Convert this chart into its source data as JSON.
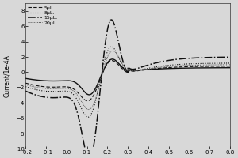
{
  "title": "",
  "xlabel": "",
  "ylabel": "Current/1e-4A",
  "xlim": [
    -0.2,
    0.8
  ],
  "ylim": [
    -10.0,
    9.0
  ],
  "xticks": [
    -0.2,
    -0.1,
    0.0,
    0.1,
    0.2,
    0.3,
    0.4,
    0.5,
    0.6,
    0.7,
    0.8
  ],
  "yticks": [
    -10.0,
    -8.0,
    -6.0,
    -4.0,
    -2.0,
    0.0,
    2.0,
    4.0,
    6.0,
    8.0
  ],
  "legend_labels": [
    "5μL.",
    "8μL.",
    "15μL.",
    "20μL."
  ],
  "background_color": "#d8d8d8",
  "line_color": "#111111"
}
